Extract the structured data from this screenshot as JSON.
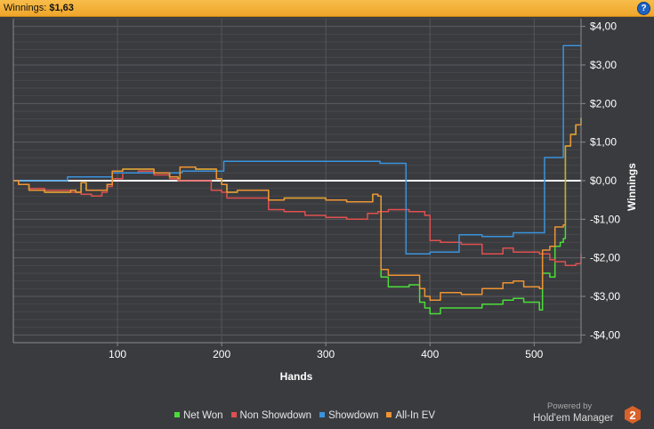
{
  "header": {
    "label": "Winnings:",
    "value": "$1,63",
    "help_icon": "?"
  },
  "colors": {
    "net_won": "#4cdc3a",
    "non_showdown": "#e0504e",
    "showdown": "#3a93dc",
    "allin_ev": "#ee9433",
    "zero_line": "#ffffff"
  },
  "chart_data": {
    "type": "line",
    "xlabel": "Hands",
    "ylabel": "Winnings",
    "xlim": [
      0,
      545
    ],
    "ylim": [
      -4.2,
      4.2
    ],
    "x_ticks": [
      100,
      200,
      300,
      400,
      500
    ],
    "x_tick_labels": [
      "100",
      "200",
      "300",
      "400",
      "500"
    ],
    "y_ticks": [
      4,
      3,
      2,
      1,
      0,
      -1,
      -2,
      -3,
      -4
    ],
    "y_tick_labels": [
      "$4,00",
      "$3,00",
      "$2,00",
      "$1,00",
      "$0,00",
      "-$1,00",
      "-$2,00",
      "-$3,00",
      "-$4,00"
    ],
    "grid": true,
    "legend": "bottom",
    "series": [
      {
        "name": "Net Won",
        "color_key": "net_won",
        "points": [
          [
            0,
            0
          ],
          [
            5,
            -0.1
          ],
          [
            15,
            -0.25
          ],
          [
            30,
            -0.3
          ],
          [
            45,
            -0.3
          ],
          [
            55,
            -0.25
          ],
          [
            60,
            -0.3
          ],
          [
            65,
            -0.05
          ],
          [
            70,
            -0.25
          ],
          [
            85,
            -0.25
          ],
          [
            90,
            -0.1
          ],
          [
            95,
            0.25
          ],
          [
            105,
            0.3
          ],
          [
            120,
            0.3
          ],
          [
            135,
            0.2
          ],
          [
            150,
            0.1
          ],
          [
            158,
            0.05
          ],
          [
            160,
            0.35
          ],
          [
            175,
            0.3
          ],
          [
            190,
            0.3
          ],
          [
            195,
            0.05
          ],
          [
            200,
            -0.1
          ],
          [
            205,
            -0.3
          ],
          [
            215,
            -0.25
          ],
          [
            240,
            -0.25
          ],
          [
            245,
            -0.5
          ],
          [
            260,
            -0.45
          ],
          [
            280,
            -0.45
          ],
          [
            300,
            -0.5
          ],
          [
            320,
            -0.55
          ],
          [
            340,
            -0.55
          ],
          [
            345,
            -0.35
          ],
          [
            350,
            -0.4
          ],
          [
            353,
            -2.5
          ],
          [
            360,
            -2.75
          ],
          [
            380,
            -2.7
          ],
          [
            390,
            -3.15
          ],
          [
            395,
            -3.3
          ],
          [
            400,
            -3.45
          ],
          [
            410,
            -3.3
          ],
          [
            430,
            -3.3
          ],
          [
            450,
            -3.2
          ],
          [
            470,
            -3.1
          ],
          [
            480,
            -3.05
          ],
          [
            490,
            -3.15
          ],
          [
            505,
            -3.35
          ],
          [
            508,
            -2.4
          ],
          [
            515,
            -2.5
          ],
          [
            520,
            -1.7
          ],
          [
            525,
            -1.6
          ],
          [
            528,
            -1.5
          ],
          [
            530,
            0.9
          ],
          [
            535,
            1.2
          ],
          [
            540,
            1.45
          ],
          [
            545,
            1.63
          ]
        ]
      },
      {
        "name": "Non Showdown",
        "color_key": "non_showdown",
        "points": [
          [
            0,
            0
          ],
          [
            5,
            -0.1
          ],
          [
            15,
            -0.2
          ],
          [
            30,
            -0.25
          ],
          [
            45,
            -0.25
          ],
          [
            55,
            -0.3
          ],
          [
            65,
            -0.35
          ],
          [
            75,
            -0.4
          ],
          [
            85,
            -0.3
          ],
          [
            90,
            -0.15
          ],
          [
            95,
            0.05
          ],
          [
            105,
            0.2
          ],
          [
            120,
            0.25
          ],
          [
            135,
            0.15
          ],
          [
            150,
            0.05
          ],
          [
            158,
            0.0
          ],
          [
            160,
            0.0
          ],
          [
            175,
            0.0
          ],
          [
            190,
            -0.25
          ],
          [
            200,
            -0.3
          ],
          [
            205,
            -0.45
          ],
          [
            240,
            -0.45
          ],
          [
            245,
            -0.75
          ],
          [
            260,
            -0.8
          ],
          [
            280,
            -0.9
          ],
          [
            300,
            -0.95
          ],
          [
            320,
            -1.0
          ],
          [
            340,
            -0.85
          ],
          [
            350,
            -0.8
          ],
          [
            360,
            -0.75
          ],
          [
            380,
            -0.8
          ],
          [
            395,
            -0.9
          ],
          [
            400,
            -1.55
          ],
          [
            410,
            -1.6
          ],
          [
            430,
            -1.65
          ],
          [
            450,
            -1.9
          ],
          [
            470,
            -1.75
          ],
          [
            480,
            -1.85
          ],
          [
            490,
            -1.85
          ],
          [
            505,
            -1.9
          ],
          [
            515,
            -2.05
          ],
          [
            520,
            -2.1
          ],
          [
            530,
            -2.2
          ],
          [
            540,
            -2.15
          ],
          [
            545,
            -1.9
          ]
        ]
      },
      {
        "name": "Showdown",
        "color_key": "showdown",
        "points": [
          [
            0,
            0
          ],
          [
            50,
            0.0
          ],
          [
            52,
            0.1
          ],
          [
            90,
            0.1
          ],
          [
            95,
            0.2
          ],
          [
            105,
            0.2
          ],
          [
            160,
            0.2
          ],
          [
            162,
            0.25
          ],
          [
            200,
            0.25
          ],
          [
            202,
            0.5
          ],
          [
            250,
            0.5
          ],
          [
            350,
            0.5
          ],
          [
            352,
            0.45
          ],
          [
            375,
            0.45
          ],
          [
            377,
            -1.9
          ],
          [
            395,
            -1.9
          ],
          [
            400,
            -1.85
          ],
          [
            410,
            -1.85
          ],
          [
            425,
            -1.85
          ],
          [
            428,
            -1.4
          ],
          [
            450,
            -1.45
          ],
          [
            480,
            -1.35
          ],
          [
            505,
            -1.35
          ],
          [
            510,
            0.6
          ],
          [
            525,
            0.6
          ],
          [
            528,
            3.5
          ],
          [
            545,
            3.5
          ]
        ]
      },
      {
        "name": "All-In EV",
        "color_key": "allin_ev",
        "points": [
          [
            0,
            0
          ],
          [
            5,
            -0.1
          ],
          [
            15,
            -0.25
          ],
          [
            30,
            -0.3
          ],
          [
            45,
            -0.3
          ],
          [
            55,
            -0.25
          ],
          [
            60,
            -0.3
          ],
          [
            65,
            -0.05
          ],
          [
            70,
            -0.25
          ],
          [
            85,
            -0.25
          ],
          [
            90,
            -0.1
          ],
          [
            95,
            0.25
          ],
          [
            105,
            0.3
          ],
          [
            120,
            0.3
          ],
          [
            135,
            0.2
          ],
          [
            150,
            0.1
          ],
          [
            158,
            0.05
          ],
          [
            160,
            0.35
          ],
          [
            175,
            0.3
          ],
          [
            190,
            0.3
          ],
          [
            195,
            0.05
          ],
          [
            200,
            -0.1
          ],
          [
            205,
            -0.3
          ],
          [
            215,
            -0.25
          ],
          [
            240,
            -0.25
          ],
          [
            245,
            -0.5
          ],
          [
            260,
            -0.45
          ],
          [
            280,
            -0.45
          ],
          [
            300,
            -0.5
          ],
          [
            320,
            -0.55
          ],
          [
            340,
            -0.55
          ],
          [
            345,
            -0.35
          ],
          [
            350,
            -0.4
          ],
          [
            353,
            -2.3
          ],
          [
            360,
            -2.45
          ],
          [
            380,
            -2.45
          ],
          [
            390,
            -2.8
          ],
          [
            395,
            -3.0
          ],
          [
            400,
            -3.1
          ],
          [
            410,
            -2.9
          ],
          [
            430,
            -2.95
          ],
          [
            450,
            -2.8
          ],
          [
            470,
            -2.65
          ],
          [
            480,
            -2.6
          ],
          [
            490,
            -2.75
          ],
          [
            505,
            -2.8
          ],
          [
            508,
            -1.8
          ],
          [
            515,
            -1.7
          ],
          [
            520,
            -1.2
          ],
          [
            525,
            -1.2
          ],
          [
            528,
            -1.15
          ],
          [
            530,
            0.9
          ],
          [
            535,
            1.2
          ],
          [
            540,
            1.45
          ],
          [
            545,
            1.63
          ]
        ]
      }
    ]
  },
  "footer": {
    "powered_by": "Powered by",
    "brand": "Hold'em Manager",
    "logo_digit": "2"
  }
}
